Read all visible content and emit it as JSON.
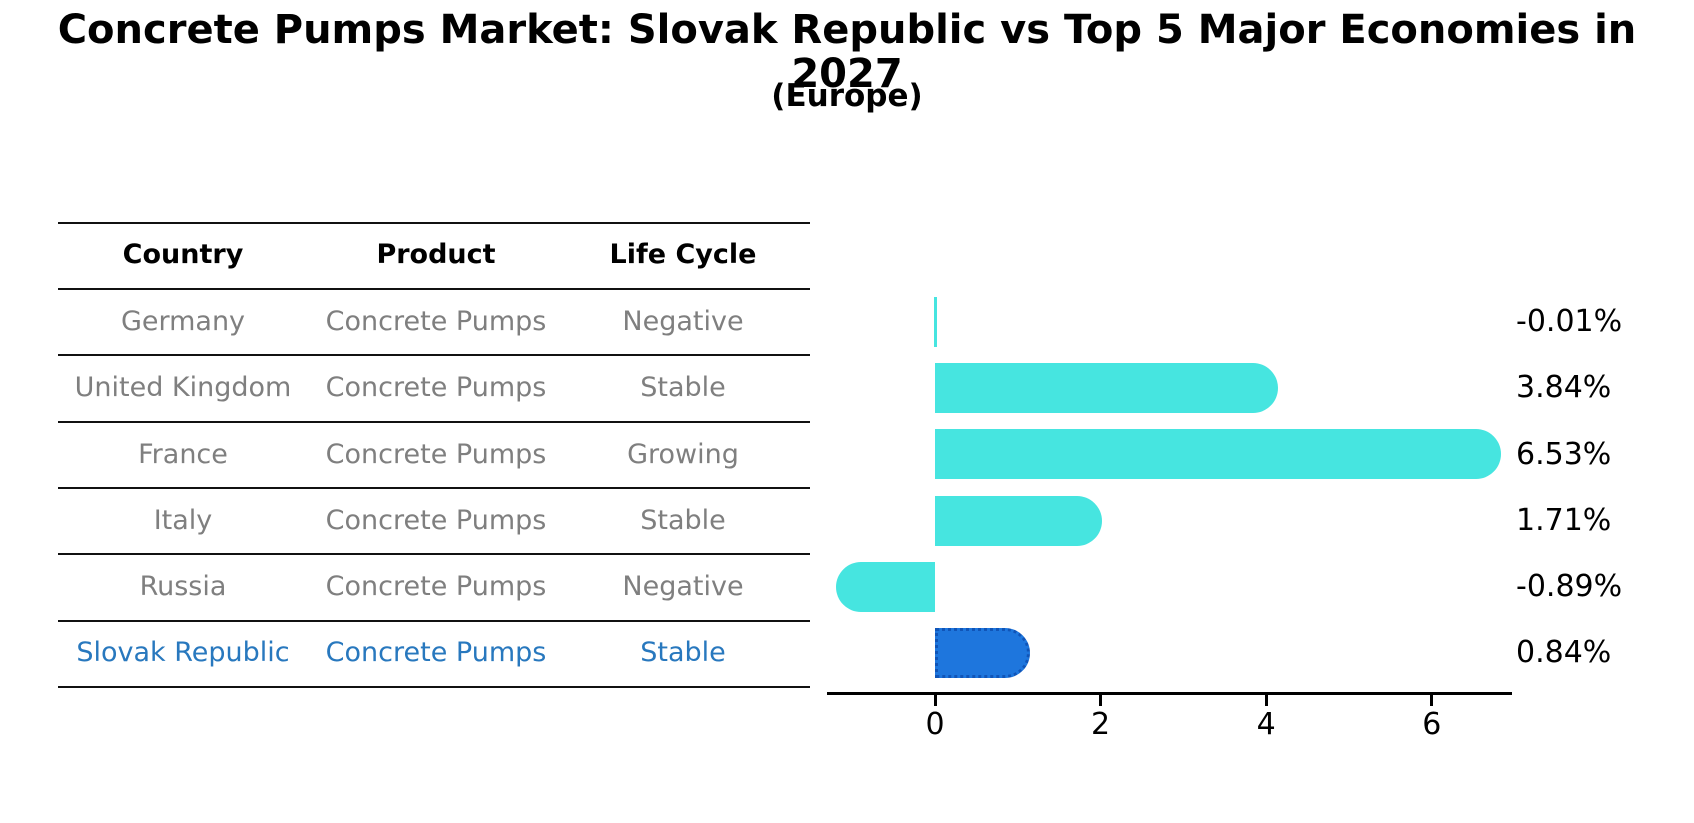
{
  "title": "Concrete Pumps Market: Slovak Republic vs Top 5 Major Economies in 2027",
  "subtitle": "(Europe)",
  "table": {
    "headers": [
      "Country",
      "Product",
      "Life Cycle"
    ],
    "rows": [
      {
        "country": "Germany",
        "product": "Concrete Pumps",
        "life_cycle": "Negative",
        "value_label": "-0.01%"
      },
      {
        "country": "United Kingdom",
        "product": "Concrete Pumps",
        "life_cycle": "Stable",
        "value_label": "3.84%"
      },
      {
        "country": "France",
        "product": "Concrete Pumps",
        "life_cycle": "Growing",
        "value_label": "6.53%"
      },
      {
        "country": "Italy",
        "product": "Concrete Pumps",
        "life_cycle": "Stable",
        "value_label": "1.71%"
      },
      {
        "country": "Russia",
        "product": "Concrete Pumps",
        "life_cycle": "Negative",
        "value_label": "-0.89%"
      },
      {
        "country": "Slovak Republic",
        "product": "Concrete Pumps",
        "life_cycle": "Stable",
        "value_label": "0.84%"
      }
    ],
    "highlight_row": "Slovak Republic"
  },
  "chart_data": {
    "type": "bar",
    "orientation": "horizontal",
    "title": "Concrete Pumps Market: Slovak Republic vs Top 5 Major Economies in 2027 (Europe)",
    "categories": [
      "Germany",
      "United Kingdom",
      "France",
      "Italy",
      "Russia",
      "Slovak Republic"
    ],
    "values": [
      -0.01,
      3.84,
      6.53,
      1.71,
      -0.89,
      0.84
    ],
    "value_labels": [
      "-0.01%",
      "3.84%",
      "6.53%",
      "1.71%",
      "-0.89%",
      "0.84%"
    ],
    "x_ticks": [
      0,
      2,
      4,
      6
    ],
    "x_tick_labels": [
      "0",
      "2",
      "4",
      "6"
    ],
    "xlim": [
      -1.3,
      6.97
    ],
    "grid": false,
    "legend": "none",
    "highlight_index": 5,
    "bar_color": "#46E5E0",
    "highlight_bar_color": "#1E76DD",
    "highlight_bar_border": "#1055B8",
    "unit": "percent growth"
  },
  "colors": {
    "bar_cyan": "#46E5E0",
    "bar_blue": "#1E76DD",
    "highlight_text_blue": "#2878BE",
    "row_text_gray": "#7F7F7F",
    "axis_black": "#000000",
    "background": "#FFFFFF"
  }
}
